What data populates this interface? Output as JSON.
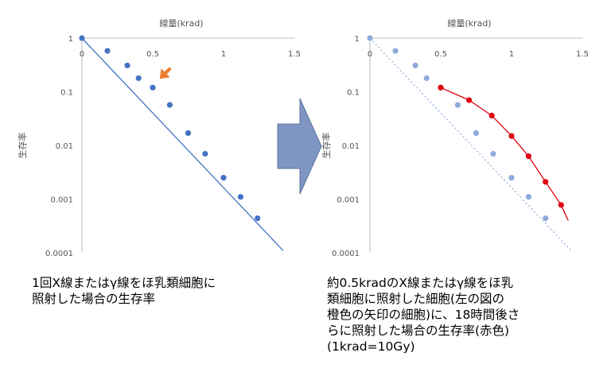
{
  "chart_data": [
    {
      "type": "scatter",
      "xlabel": "線量(krad)",
      "ylabel": "生存率",
      "xlim": [
        0,
        1.5
      ],
      "ylim": [
        0.0001,
        1
      ],
      "yscale": "log",
      "x_ticks": [
        "0",
        "0.5",
        "1",
        "1.5"
      ],
      "y_ticks": [
        "1",
        "0.1",
        "0.01",
        "0.001",
        "0.0001"
      ],
      "series": [
        {
          "color": "#4472c4",
          "line": "solid",
          "points": [
            [
              0,
              1
            ],
            [
              0.18,
              0.58
            ],
            [
              0.32,
              0.31
            ],
            [
              0.4,
              0.18
            ],
            [
              0.5,
              0.12
            ],
            [
              0.62,
              0.057
            ],
            [
              0.75,
              0.017
            ],
            [
              0.87,
              0.007
            ],
            [
              1.0,
              0.0025
            ],
            [
              1.12,
              0.0011
            ],
            [
              1.24,
              0.00044
            ]
          ],
          "trend": [
            [
              0,
              1
            ],
            [
              1.42,
              0.00011
            ]
          ]
        }
      ],
      "annotation": {
        "type": "arrow",
        "color": "#ed7d31",
        "x": 0.56,
        "y": 0.18
      }
    },
    {
      "type": "scatter",
      "xlabel": "線量(krad)",
      "ylabel": "生存率",
      "xlim": [
        0,
        1.5
      ],
      "ylim": [
        0.0001,
        1
      ],
      "yscale": "log",
      "x_ticks": [
        "0",
        "0.5",
        "1",
        "1.5"
      ],
      "y_ticks": [
        "1",
        "0.1",
        "0.01",
        "0.001",
        "0.0001"
      ],
      "series": [
        {
          "color": "#8eaadb",
          "line": "dotted",
          "points": [
            [
              0,
              1
            ],
            [
              0.18,
              0.58
            ],
            [
              0.32,
              0.31
            ],
            [
              0.4,
              0.18
            ],
            [
              0.5,
              0.12
            ],
            [
              0.62,
              0.057
            ],
            [
              0.75,
              0.017
            ],
            [
              0.87,
              0.007
            ],
            [
              1.0,
              0.0025
            ],
            [
              1.12,
              0.0011
            ],
            [
              1.24,
              0.00044
            ]
          ],
          "trend": [
            [
              0,
              1
            ],
            [
              1.42,
              0.00011
            ]
          ]
        },
        {
          "color": "#e0000f",
          "line": "solid",
          "points": [
            [
              0.5,
              0.12
            ],
            [
              0.7,
              0.07
            ],
            [
              0.86,
              0.036
            ],
            [
              1.0,
              0.015
            ],
            [
              1.12,
              0.0063
            ],
            [
              1.24,
              0.0021
            ],
            [
              1.35,
              0.00078
            ]
          ],
          "trend": [
            [
              0.5,
              0.12
            ],
            [
              0.7,
              0.07
            ],
            [
              0.86,
              0.036
            ],
            [
              1.0,
              0.015
            ],
            [
              1.12,
              0.0063
            ],
            [
              1.24,
              0.0021
            ],
            [
              1.35,
              0.00078
            ],
            [
              1.4,
              0.0004
            ]
          ]
        }
      ]
    }
  ],
  "big_arrow_color": "#7f96c3",
  "captions": {
    "left": [
      "1回X線またはγ線をほ乳類細胞に",
      "照射した場合の生存率"
    ],
    "right": [
      "約0.5kradのX線またはγ線をほ乳",
      "類細胞に照射した細胞(左の図の",
      "橙色の矢印の細胞)に、18時間後さ",
      "らに照射した場合の生存率(赤色)",
      "(1krad=10Gy)"
    ]
  }
}
